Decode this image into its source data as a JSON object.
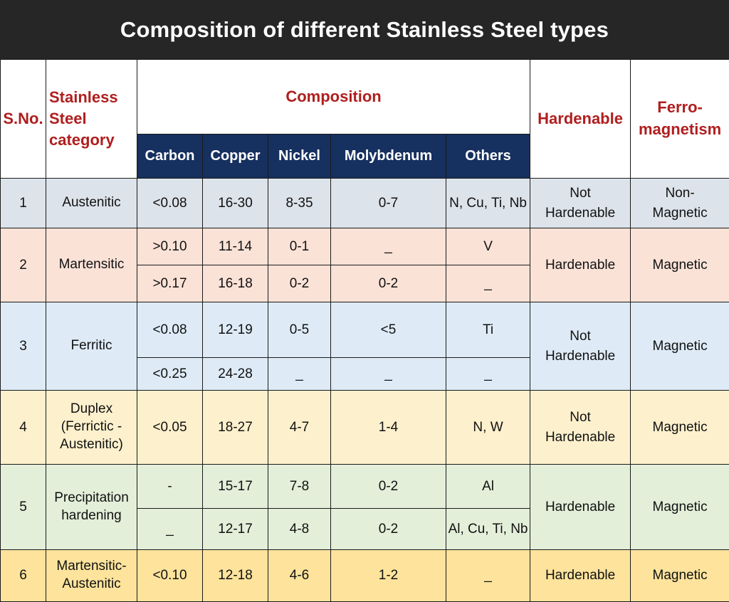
{
  "title": "Composition of different Stainless Steel types",
  "headers": {
    "sno": "S.No.",
    "category": "Stainless Steel category",
    "composition": "Composition",
    "carbon": "Carbon",
    "copper": "Copper",
    "nickel": "Nickel",
    "molybdenum": "Molybdenum",
    "others": "Others",
    "hardenable": "Hardenable",
    "ferro_line1": "Ferro-",
    "ferro_line2": "magnetism"
  },
  "rows": [
    {
      "sno": "1",
      "category": "Austenitic",
      "sub": [
        {
          "carbon": "<0.08",
          "copper": "16-30",
          "nickel": "8-35",
          "molybdenum": "0-7",
          "others": "N, Cu, Ti, Nb"
        }
      ],
      "hardenable": [
        "Not",
        "Hardenable"
      ],
      "magnetism": [
        "Non-",
        "Magnetic"
      ]
    },
    {
      "sno": "2",
      "category": "Martensitic",
      "sub": [
        {
          "carbon": ">0.10",
          "copper": "11-14",
          "nickel": "0-1",
          "molybdenum": "_",
          "others": "V"
        },
        {
          "carbon": ">0.17",
          "copper": "16-18",
          "nickel": "0-2",
          "molybdenum": "0-2",
          "others": "_"
        }
      ],
      "hardenable": [
        "Hardenable"
      ],
      "magnetism": [
        "Magnetic"
      ]
    },
    {
      "sno": "3",
      "category": "Ferritic",
      "sub": [
        {
          "carbon": "<0.08",
          "copper": "12-19",
          "nickel": "0-5",
          "molybdenum": "<5",
          "others": "Ti"
        },
        {
          "carbon": "<0.25",
          "copper": "24-28",
          "nickel": "_",
          "molybdenum": "_",
          "others": "_"
        }
      ],
      "hardenable": [
        "Not",
        "Hardenable"
      ],
      "magnetism": [
        "Magnetic"
      ]
    },
    {
      "sno": "4",
      "category_lines": [
        "Duplex",
        "(Ferrictic -",
        "Austenitic)"
      ],
      "sub": [
        {
          "carbon": "<0.05",
          "copper": "18-27",
          "nickel": "4-7",
          "molybdenum": "1-4",
          "others": "N, W"
        }
      ],
      "hardenable": [
        "Not",
        "Hardenable"
      ],
      "magnetism": [
        "Magnetic"
      ]
    },
    {
      "sno": "5",
      "category_lines": [
        "Precipitation",
        "hardening"
      ],
      "sub": [
        {
          "carbon": "-",
          "copper": "15-17",
          "nickel": "7-8",
          "molybdenum": "0-2",
          "others": "Al"
        },
        {
          "carbon": "_",
          "copper": "12-17",
          "nickel": "4-8",
          "molybdenum": "0-2",
          "others": "Al, Cu, Ti, Nb"
        }
      ],
      "hardenable": [
        "Hardenable"
      ],
      "magnetism": [
        "Magnetic"
      ]
    },
    {
      "sno": "6",
      "category_lines": [
        "Martensitic-",
        "Austenitic"
      ],
      "sub": [
        {
          "carbon": "<0.10",
          "copper": "12-18",
          "nickel": "4-6",
          "molybdenum": "1-2",
          "others": "_"
        }
      ],
      "hardenable": [
        "Hardenable"
      ],
      "magnetism": [
        "Magnetic"
      ]
    }
  ]
}
